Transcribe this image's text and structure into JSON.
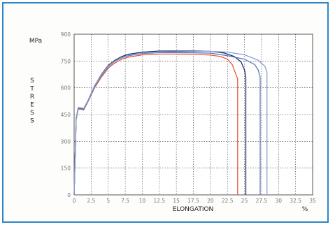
{
  "chart_data": {
    "type": "line",
    "xlabel": "ELONGATION",
    "x_unit": "%",
    "ylabel": "STRESS",
    "y_unit": "MPa",
    "xlim": [
      0,
      35
    ],
    "ylim": [
      0,
      900
    ],
    "x_ticks": [
      "0",
      "2.5",
      "5",
      "7.5",
      "10",
      "12.5",
      "15",
      "17.5",
      "20",
      "22.5",
      "25",
      "27.5",
      "30",
      "32.5",
      "35"
    ],
    "y_ticks": [
      "0",
      "150",
      "300",
      "450",
      "600",
      "750",
      "900"
    ],
    "grid": true,
    "series": [
      {
        "color": "#e05a3c",
        "x": [
          0.0,
          0.3,
          0.6,
          1.0,
          1.4,
          2.0,
          3.0,
          4.0,
          5.0,
          6.0,
          7.0,
          8.0,
          10.0,
          12.5,
          15.0,
          17.5,
          20.0,
          21.5,
          22.5,
          23.2,
          23.6,
          24.0,
          24.0
        ],
        "y": [
          0,
          420,
          480,
          480,
          475,
          520,
          600,
          660,
          710,
          740,
          760,
          772,
          784,
          789,
          789,
          788,
          783,
          775,
          760,
          730,
          690,
          650,
          0
        ]
      },
      {
        "color": "#1a2f6a",
        "x": [
          0.0,
          0.3,
          0.6,
          1.0,
          1.4,
          2.0,
          3.0,
          4.0,
          5.0,
          6.0,
          7.0,
          8.0,
          10.0,
          12.5,
          15.0,
          17.5,
          20.0,
          22.0,
          23.5,
          24.5,
          25.0,
          25.2,
          25.2
        ],
        "y": [
          0,
          430,
          488,
          485,
          480,
          525,
          610,
          675,
          725,
          755,
          775,
          788,
          800,
          806,
          806,
          806,
          804,
          795,
          775,
          745,
          700,
          660,
          0
        ]
      },
      {
        "color": "#5b76b8",
        "x": [
          0.0,
          0.3,
          0.6,
          1.0,
          1.4,
          2.0,
          3.0,
          4.0,
          5.0,
          6.0,
          7.0,
          8.0,
          10.0,
          12.5,
          15.0,
          17.5,
          20.0,
          22.5,
          25.0,
          26.5,
          27.0,
          27.3,
          27.3
        ],
        "y": [
          0,
          425,
          485,
          482,
          478,
          522,
          605,
          668,
          718,
          748,
          768,
          780,
          792,
          797,
          797,
          796,
          794,
          780,
          760,
          730,
          700,
          660,
          0
        ]
      },
      {
        "color": "#8c9fcf",
        "x": [
          0.0,
          0.3,
          0.6,
          1.0,
          1.4,
          2.0,
          3.0,
          4.0,
          5.0,
          6.0,
          7.0,
          8.0,
          10.0,
          12.5,
          15.0,
          17.5,
          20.0,
          22.5,
          25.0,
          27.0,
          28.0,
          28.3,
          28.3
        ],
        "y": [
          0,
          430,
          490,
          488,
          484,
          528,
          612,
          672,
          722,
          750,
          770,
          783,
          795,
          800,
          802,
          803,
          804,
          800,
          785,
          755,
          720,
          690,
          0
        ]
      }
    ]
  }
}
